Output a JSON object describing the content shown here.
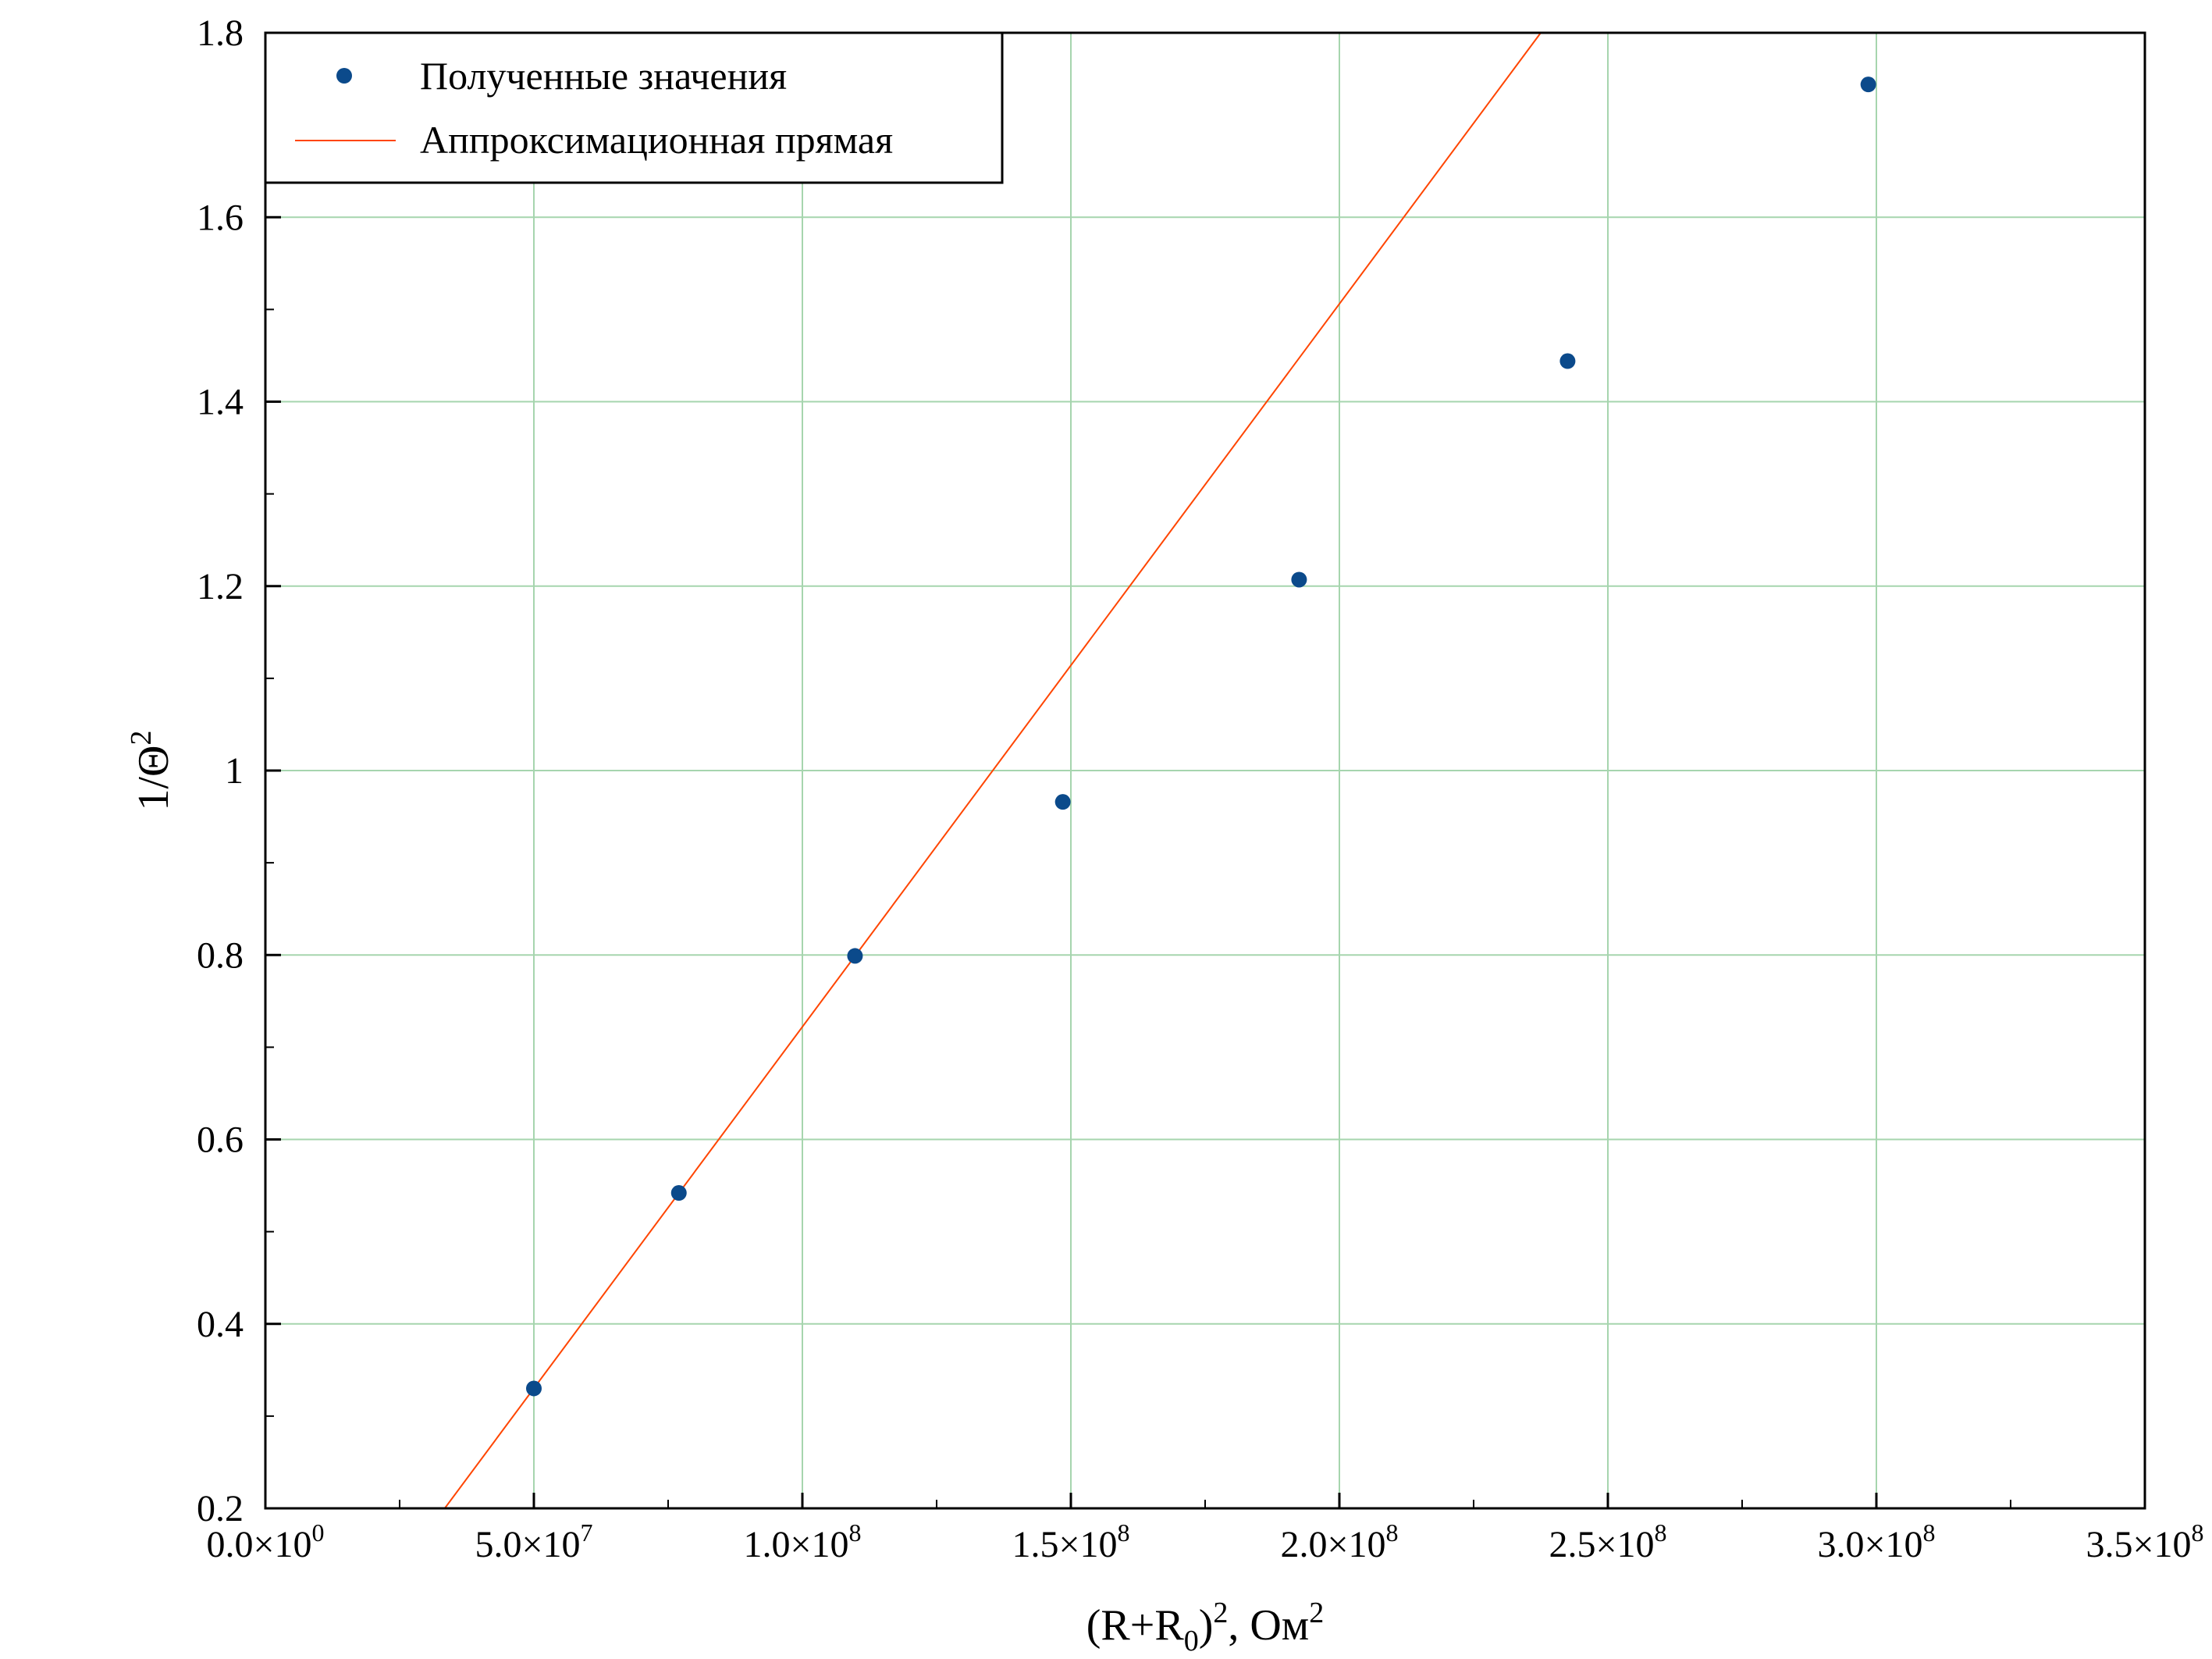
{
  "chart_data": {
    "type": "scatter",
    "xlabel": {
      "base": "(R+R",
      "sub": "0",
      "mid": ")",
      "sup": "2",
      "tail": ", Ом",
      "sup2": "2"
    },
    "ylabel": {
      "base": "1/Θ",
      "sup": "2"
    },
    "xlim": [
      0,
      350000000
    ],
    "ylim": [
      0.2,
      1.8
    ],
    "grid": true,
    "legend_position": "top-left",
    "x_ticks": [
      {
        "value": 0,
        "mantissa": "0.0×10",
        "exp": "0"
      },
      {
        "value": 50000000,
        "mantissa": "5.0×10",
        "exp": "7"
      },
      {
        "value": 100000000,
        "mantissa": "1.0×10",
        "exp": "8"
      },
      {
        "value": 150000000,
        "mantissa": "1.5×10",
        "exp": "8"
      },
      {
        "value": 200000000,
        "mantissa": "2.0×10",
        "exp": "8"
      },
      {
        "value": 250000000,
        "mantissa": "2.5×10",
        "exp": "8"
      },
      {
        "value": 300000000,
        "mantissa": "3.0×10",
        "exp": "8"
      },
      {
        "value": 350000000,
        "mantissa": "3.5×10",
        "exp": "8"
      }
    ],
    "y_ticks": [
      {
        "value": 0.2,
        "label": "0.2"
      },
      {
        "value": 0.4,
        "label": "0.4"
      },
      {
        "value": 0.6,
        "label": "0.6"
      },
      {
        "value": 0.8,
        "label": "0.8"
      },
      {
        "value": 1.0,
        "label": "1"
      },
      {
        "value": 1.2,
        "label": "1.2"
      },
      {
        "value": 1.4,
        "label": "1.4"
      },
      {
        "value": 1.6,
        "label": "1.6"
      },
      {
        "value": 1.8,
        "label": "1.8"
      }
    ],
    "series": [
      {
        "name": "Полученные значения",
        "kind": "scatter",
        "color": "#0b4a8b",
        "x": [
          50000000,
          77000000,
          109800000,
          148500000,
          192500000,
          242500000,
          298500000
        ],
        "y": [
          0.33,
          0.542,
          0.799,
          0.966,
          1.207,
          1.444,
          1.744
        ]
      },
      {
        "name": "Аппроксимационная прямая",
        "kind": "line",
        "color": "#ff4500",
        "x": [
          33400000,
          237500000
        ],
        "y": [
          0.2,
          1.8
        ]
      }
    ]
  }
}
